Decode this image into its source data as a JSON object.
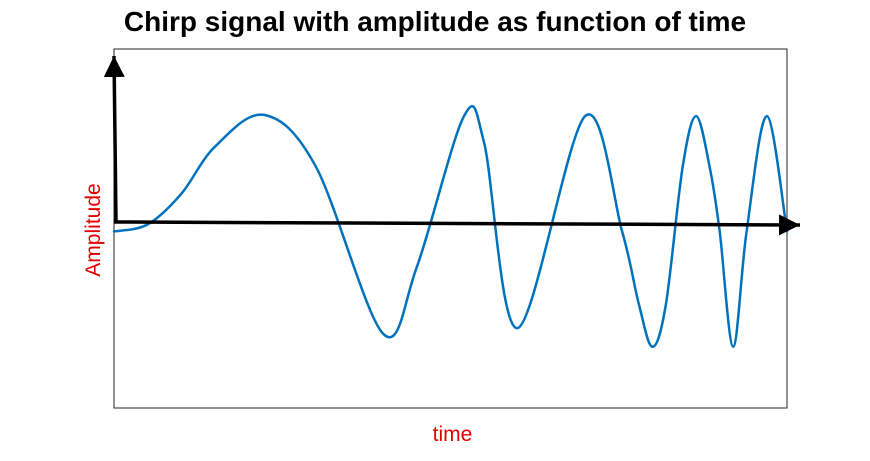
{
  "chart_data": {
    "type": "line",
    "title": "Chirp signal with amplitude as function of time",
    "xlabel": "time",
    "ylabel": "Amplitude",
    "label_color": "#e00000",
    "series_color": "#0072bd",
    "axis_color": "#000000",
    "grid": false,
    "xlim": [
      0,
      1
    ],
    "ylim": [
      -1.5,
      1.55
    ],
    "series": [
      {
        "x": [
          0,
          0.05,
          0.1,
          0.15,
          0.223,
          0.3,
          0.4,
          0.45,
          0.52,
          0.55,
          0.6,
          0.7,
          0.755,
          0.78,
          0.8,
          0.82,
          0.845,
          0.865,
          0.885,
          0.9,
          0.92,
          0.94,
          0.97,
          1.0
        ],
        "y": [
          0,
          0.06,
          0.32,
          0.72,
          0.99,
          0.55,
          -0.87,
          -0.3,
          0.98,
          0.75,
          -0.82,
          0.98,
          0.0,
          -0.62,
          -0.98,
          -0.62,
          0.55,
          0.98,
          0.55,
          0.0,
          -0.98,
          0.0,
          0.98,
          0.0
        ]
      }
    ]
  }
}
